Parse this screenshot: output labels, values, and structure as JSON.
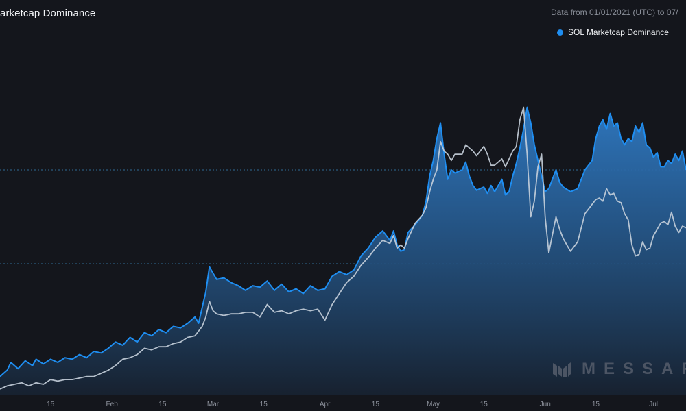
{
  "header": {
    "title": "arketcap Dominance",
    "subtitle": "Data from 01/01/2021 (UTC) to 07/"
  },
  "legend": {
    "label": "SOL Marketcap Dominance"
  },
  "watermark": {
    "text": "MESSAR",
    "logo_icon": "messari-logo-icon"
  },
  "colors": {
    "background": "#14161c",
    "series_line": "#1f8ef1",
    "series_fill_top": "#2f7ac4",
    "series_fill_bottom": "#17212f",
    "comparison_line": "#c6d0dc",
    "gridline": "#2f6c96",
    "axis_text": "#8b909a"
  },
  "chart_data": {
    "type": "area",
    "title": "arketcap Dominance",
    "subtitle": "Data from 01/01/2021 (UTC) to 07/",
    "xlabel": "",
    "ylabel": "",
    "x_ticks": [
      "15",
      "Feb",
      "15",
      "Mar",
      "15",
      "Apr",
      "15",
      "May",
      "15",
      "Jun",
      "15",
      "Jul"
    ],
    "x_tick_positions": [
      15,
      32,
      46,
      60,
      74,
      91,
      105,
      121,
      135,
      152,
      166,
      182
    ],
    "x_range": [
      1,
      191
    ],
    "y_range": [
      0,
      100
    ],
    "y_tick_labels": [],
    "gridlines": [
      {
        "value": 42,
        "style": "dotted"
      },
      {
        "value": 72,
        "style": "dotted"
      }
    ],
    "legend_position": "top-right",
    "grid": false,
    "series": [
      {
        "name": "SOL Marketcap Dominance",
        "style": "area",
        "points": [
          [
            1,
            6.0
          ],
          [
            3,
            8.0
          ],
          [
            4,
            10.5
          ],
          [
            6,
            8.5
          ],
          [
            8,
            11.0
          ],
          [
            10,
            9.5
          ],
          [
            11,
            11.5
          ],
          [
            13,
            10.0
          ],
          [
            15,
            11.5
          ],
          [
            17,
            10.5
          ],
          [
            19,
            12.0
          ],
          [
            21,
            11.5
          ],
          [
            23,
            13.0
          ],
          [
            25,
            12.0
          ],
          [
            27,
            14.0
          ],
          [
            29,
            13.5
          ],
          [
            31,
            15.0
          ],
          [
            33,
            17.0
          ],
          [
            35,
            16.0
          ],
          [
            37,
            18.5
          ],
          [
            39,
            17.0
          ],
          [
            41,
            20.0
          ],
          [
            43,
            19.0
          ],
          [
            45,
            21.0
          ],
          [
            47,
            20.0
          ],
          [
            49,
            22.0
          ],
          [
            51,
            21.5
          ],
          [
            53,
            23.0
          ],
          [
            55,
            25.0
          ],
          [
            56,
            23.0
          ],
          [
            57,
            28.0
          ],
          [
            58,
            33.0
          ],
          [
            59,
            41.0
          ],
          [
            60,
            39.0
          ],
          [
            61,
            37.0
          ],
          [
            63,
            37.5
          ],
          [
            65,
            36.0
          ],
          [
            67,
            35.0
          ],
          [
            69,
            33.5
          ],
          [
            71,
            35.0
          ],
          [
            73,
            34.5
          ],
          [
            75,
            36.5
          ],
          [
            77,
            33.5
          ],
          [
            79,
            35.5
          ],
          [
            81,
            33.0
          ],
          [
            83,
            34.0
          ],
          [
            85,
            32.5
          ],
          [
            87,
            35.0
          ],
          [
            89,
            33.5
          ],
          [
            91,
            34.0
          ],
          [
            93,
            38.0
          ],
          [
            95,
            39.5
          ],
          [
            97,
            38.5
          ],
          [
            99,
            40.0
          ],
          [
            101,
            44.5
          ],
          [
            103,
            47.0
          ],
          [
            105,
            50.5
          ],
          [
            107,
            52.5
          ],
          [
            109,
            49.5
          ],
          [
            110,
            52.5
          ],
          [
            111,
            48.0
          ],
          [
            112,
            46.0
          ],
          [
            113,
            46.5
          ],
          [
            114,
            52.0
          ],
          [
            116,
            54.5
          ],
          [
            118,
            57.5
          ],
          [
            119,
            62.0
          ],
          [
            120,
            70.0
          ],
          [
            121,
            75.0
          ],
          [
            122,
            82.0
          ],
          [
            123,
            87.0
          ],
          [
            124,
            77.0
          ],
          [
            125,
            69.0
          ],
          [
            126,
            72.0
          ],
          [
            127,
            71.0
          ],
          [
            129,
            72.0
          ],
          [
            130,
            74.5
          ],
          [
            131,
            70.0
          ],
          [
            132,
            67.0
          ],
          [
            133,
            65.5
          ],
          [
            135,
            66.5
          ],
          [
            136,
            64.5
          ],
          [
            137,
            67.0
          ],
          [
            138,
            65.0
          ],
          [
            140,
            69.0
          ],
          [
            141,
            64.0
          ],
          [
            142,
            65.0
          ],
          [
            143,
            70.0
          ],
          [
            144,
            74.0
          ],
          [
            145,
            79.0
          ],
          [
            146,
            85.0
          ],
          [
            147,
            92.0
          ],
          [
            148,
            87.0
          ],
          [
            149,
            80.0
          ],
          [
            150,
            75.0
          ],
          [
            151,
            70.0
          ],
          [
            152,
            65.0
          ],
          [
            153,
            66.0
          ],
          [
            155,
            72.0
          ],
          [
            156,
            68.0
          ],
          [
            157,
            66.5
          ],
          [
            159,
            65.0
          ],
          [
            161,
            66.0
          ],
          [
            163,
            72.0
          ],
          [
            165,
            75.0
          ],
          [
            166,
            82.0
          ],
          [
            167,
            86.0
          ],
          [
            168,
            88.0
          ],
          [
            169,
            85.0
          ],
          [
            170,
            90.0
          ],
          [
            171,
            86.0
          ],
          [
            172,
            87.0
          ],
          [
            173,
            82.0
          ],
          [
            174,
            80.0
          ],
          [
            175,
            82.0
          ],
          [
            176,
            81.0
          ],
          [
            177,
            86.0
          ],
          [
            178,
            84.0
          ],
          [
            179,
            87.0
          ],
          [
            180,
            80.0
          ],
          [
            181,
            79.0
          ],
          [
            182,
            76.0
          ],
          [
            183,
            77.5
          ],
          [
            184,
            73.0
          ],
          [
            185,
            73.0
          ],
          [
            186,
            75.0
          ],
          [
            187,
            74.0
          ],
          [
            188,
            77.0
          ],
          [
            189,
            75.0
          ],
          [
            190,
            78.0
          ],
          [
            191,
            72.0
          ]
        ]
      },
      {
        "name": "",
        "style": "line",
        "points": [
          [
            1,
            2.0
          ],
          [
            3,
            3.0
          ],
          [
            5,
            3.5
          ],
          [
            7,
            4.0
          ],
          [
            9,
            3.0
          ],
          [
            11,
            4.0
          ],
          [
            13,
            3.5
          ],
          [
            15,
            5.0
          ],
          [
            17,
            4.5
          ],
          [
            19,
            5.0
          ],
          [
            21,
            5.0
          ],
          [
            23,
            5.5
          ],
          [
            25,
            6.0
          ],
          [
            27,
            6.0
          ],
          [
            29,
            7.0
          ],
          [
            31,
            8.0
          ],
          [
            33,
            9.5
          ],
          [
            35,
            11.5
          ],
          [
            37,
            12.0
          ],
          [
            39,
            13.0
          ],
          [
            41,
            15.0
          ],
          [
            43,
            14.5
          ],
          [
            45,
            15.5
          ],
          [
            47,
            15.5
          ],
          [
            49,
            16.5
          ],
          [
            51,
            17.0
          ],
          [
            53,
            18.5
          ],
          [
            55,
            19.0
          ],
          [
            57,
            22.0
          ],
          [
            58,
            25.0
          ],
          [
            59,
            30.0
          ],
          [
            60,
            27.0
          ],
          [
            61,
            26.0
          ],
          [
            63,
            25.5
          ],
          [
            65,
            26.0
          ],
          [
            67,
            26.0
          ],
          [
            69,
            26.5
          ],
          [
            71,
            26.5
          ],
          [
            73,
            25.0
          ],
          [
            75,
            29.0
          ],
          [
            77,
            26.5
          ],
          [
            79,
            27.0
          ],
          [
            81,
            26.0
          ],
          [
            83,
            27.0
          ],
          [
            85,
            27.5
          ],
          [
            87,
            27.0
          ],
          [
            89,
            27.5
          ],
          [
            91,
            24.0
          ],
          [
            93,
            29.0
          ],
          [
            95,
            32.5
          ],
          [
            97,
            36.0
          ],
          [
            99,
            38.0
          ],
          [
            101,
            41.5
          ],
          [
            103,
            44.0
          ],
          [
            105,
            47.0
          ],
          [
            107,
            49.5
          ],
          [
            109,
            48.5
          ],
          [
            110,
            51.0
          ],
          [
            111,
            47.0
          ],
          [
            112,
            48.0
          ],
          [
            113,
            47.0
          ],
          [
            114,
            50.0
          ],
          [
            116,
            55.0
          ],
          [
            118,
            57.5
          ],
          [
            119,
            60.0
          ],
          [
            120,
            65.0
          ],
          [
            121,
            69.0
          ],
          [
            122,
            72.0
          ],
          [
            123,
            81.0
          ],
          [
            124,
            78.0
          ],
          [
            125,
            77.0
          ],
          [
            126,
            75.0
          ],
          [
            127,
            77.0
          ],
          [
            129,
            77.0
          ],
          [
            130,
            80.0
          ],
          [
            131,
            79.0
          ],
          [
            132,
            78.0
          ],
          [
            133,
            76.5
          ],
          [
            135,
            79.5
          ],
          [
            136,
            77.0
          ],
          [
            137,
            73.5
          ],
          [
            138,
            73.5
          ],
          [
            140,
            75.5
          ],
          [
            141,
            73.0
          ],
          [
            142,
            75.5
          ],
          [
            143,
            78.0
          ],
          [
            144,
            79.5
          ],
          [
            145,
            88.0
          ],
          [
            146,
            92.0
          ],
          [
            147,
            77.0
          ],
          [
            148,
            57.0
          ],
          [
            149,
            62.0
          ],
          [
            150,
            73.0
          ],
          [
            151,
            77.0
          ],
          [
            152,
            57.0
          ],
          [
            153,
            45.5
          ],
          [
            155,
            57.0
          ],
          [
            156,
            53.0
          ],
          [
            157,
            50.0
          ],
          [
            159,
            46.0
          ],
          [
            161,
            49.0
          ],
          [
            163,
            58.0
          ],
          [
            165,
            61.0
          ],
          [
            166,
            62.5
          ],
          [
            167,
            63.0
          ],
          [
            168,
            62.0
          ],
          [
            169,
            66.0
          ],
          [
            170,
            64.0
          ],
          [
            171,
            64.5
          ],
          [
            172,
            62.0
          ],
          [
            173,
            61.5
          ],
          [
            174,
            58.0
          ],
          [
            175,
            56.0
          ],
          [
            176,
            48.0
          ],
          [
            177,
            44.5
          ],
          [
            178,
            45.0
          ],
          [
            179,
            49.0
          ],
          [
            180,
            46.5
          ],
          [
            181,
            47.0
          ],
          [
            182,
            51.0
          ],
          [
            183,
            53.0
          ],
          [
            184,
            55.0
          ],
          [
            185,
            55.5
          ],
          [
            186,
            54.5
          ],
          [
            187,
            58.5
          ],
          [
            188,
            54.0
          ],
          [
            189,
            52.0
          ],
          [
            190,
            54.0
          ],
          [
            191,
            53.5
          ]
        ]
      }
    ]
  }
}
